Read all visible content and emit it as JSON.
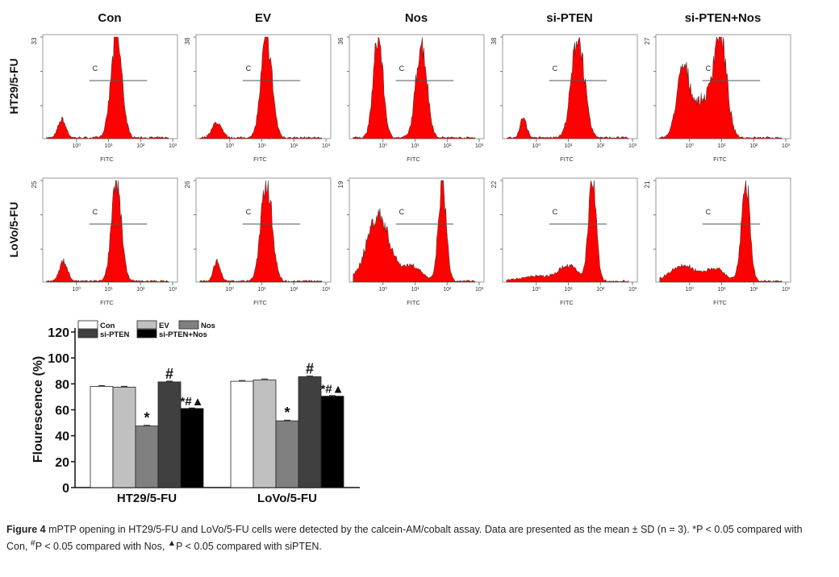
{
  "figure": {
    "column_titles": [
      "Con",
      "EV",
      "Nos",
      "si-PTEN",
      "si-PTEN+Nos"
    ],
    "row_labels": [
      "HT29/5-FU",
      "LoVo/5-FU"
    ],
    "histogram_xlabel": "FITC",
    "histogram_xticks": [
      "10⁰",
      "10¹",
      "10²",
      "10³"
    ],
    "gate_label": "C",
    "histogram_color": "#ff0000"
  },
  "chart_data": [
    {
      "type": "histogram",
      "description_units": "x in log10(FITC), y in counts",
      "xlim_log10": [
        -1.05,
        3.15
      ],
      "gate_log10": [
        0.4,
        2.2
      ],
      "panels": [
        {
          "row": "HT29/5-FU",
          "column": "Con",
          "ymax": 33,
          "peaks": [
            [
              -0.45,
              0.18,
              0.12
            ],
            [
              1.25,
              1,
              0.17
            ]
          ]
        },
        {
          "row": "HT29/5-FU",
          "column": "EV",
          "ymax": 38,
          "peaks": [
            [
              -0.4,
              0.15,
              0.15
            ],
            [
              1.15,
              1,
              0.17
            ]
          ]
        },
        {
          "row": "HT29/5-FU",
          "column": "Nos",
          "ymax": 36,
          "peaks": [
            [
              -0.15,
              1,
              0.15
            ],
            [
              1.2,
              0.95,
              0.17
            ]
          ]
        },
        {
          "row": "HT29/5-FU",
          "column": "si-PTEN",
          "ymax": 38,
          "peaks": [
            [
              -0.4,
              0.2,
              0.1
            ],
            [
              1.3,
              1,
              0.2
            ]
          ]
        },
        {
          "row": "HT29/5-FU",
          "column": "si-PTEN+Nos",
          "ymax": 27,
          "peaks": [
            [
              -0.2,
              0.65,
              0.2
            ],
            [
              0.4,
              0.35,
              0.3
            ],
            [
              0.95,
              1,
              0.2
            ]
          ]
        },
        {
          "row": "LoVo/5-FU",
          "column": "Con",
          "ymax": 25,
          "peaks": [
            [
              -0.4,
              0.2,
              0.12
            ],
            [
              1.25,
              1,
              0.15
            ]
          ]
        },
        {
          "row": "LoVo/5-FU",
          "column": "EV",
          "ymax": 26,
          "peaks": [
            [
              -0.4,
              0.2,
              0.1
            ],
            [
              1.15,
              1,
              0.17
            ]
          ]
        },
        {
          "row": "LoVo/5-FU",
          "column": "Nos",
          "ymax": 19,
          "peaks": [
            [
              -0.15,
              0.65,
              0.35
            ],
            [
              0.9,
              0.15,
              0.3
            ],
            [
              1.85,
              1,
              0.12
            ]
          ]
        },
        {
          "row": "LoVo/5-FU",
          "column": "si-PTEN",
          "ymax": 22,
          "peaks": [
            [
              0,
              0.05,
              0.5
            ],
            [
              1,
              0.15,
              0.3
            ],
            [
              1.75,
              1,
              0.12
            ]
          ]
        },
        {
          "row": "LoVo/5-FU",
          "column": "si-PTEN+Nos",
          "ymax": 21,
          "peaks": [
            [
              -0.2,
              0.15,
              0.4
            ],
            [
              0.8,
              0.12,
              0.3
            ],
            [
              1.75,
              1,
              0.13
            ]
          ]
        }
      ]
    },
    {
      "type": "bar",
      "categories": [
        "HT29/5-FU",
        "LoVo/5-FU"
      ],
      "ylabel": "Flourescence (%)",
      "ylim": [
        0,
        120
      ],
      "yticks": [
        0,
        20,
        40,
        60,
        80,
        100,
        120
      ],
      "legend_placement": "top-left",
      "series": [
        {
          "name": "Con",
          "color": "#ffffff",
          "values": [
            78,
            82
          ],
          "sd": [
            0.6,
            0.6
          ],
          "marks": [
            "",
            ""
          ]
        },
        {
          "name": "EV",
          "color": "#c0c0c0",
          "values": [
            77.5,
            83
          ],
          "sd": [
            0.6,
            0.8
          ],
          "marks": [
            "",
            ""
          ]
        },
        {
          "name": "Nos",
          "color": "#808080",
          "values": [
            47.5,
            51.5
          ],
          "sd": [
            0.5,
            0.5
          ],
          "marks": [
            "*",
            "*"
          ]
        },
        {
          "name": "si-PTEN",
          "color": "#404040",
          "values": [
            81.5,
            85.5
          ],
          "sd": [
            0.6,
            0.5
          ],
          "marks": [
            "#",
            "#"
          ]
        },
        {
          "name": "si-PTEN+Nos",
          "color": "#000000",
          "values": [
            61,
            70.5
          ],
          "sd": [
            0.4,
            0.5
          ],
          "marks": [
            "*#▲",
            "*#▲"
          ]
        }
      ]
    }
  ],
  "caption": {
    "label": "Figure 4",
    "text1": " mPTP opening in HT29/5-FU and LoVo/5-FU cells were detected by the calcein-AM/cobalt assay. Data are presented as the mean ± SD (n = 3). *P < 0.05 compared with Con, ",
    "sup1": "#",
    "text2": "P < 0.05 compared with Nos, ",
    "sup2": "▲",
    "text3": "P < 0.05 compared with siPTEN."
  }
}
